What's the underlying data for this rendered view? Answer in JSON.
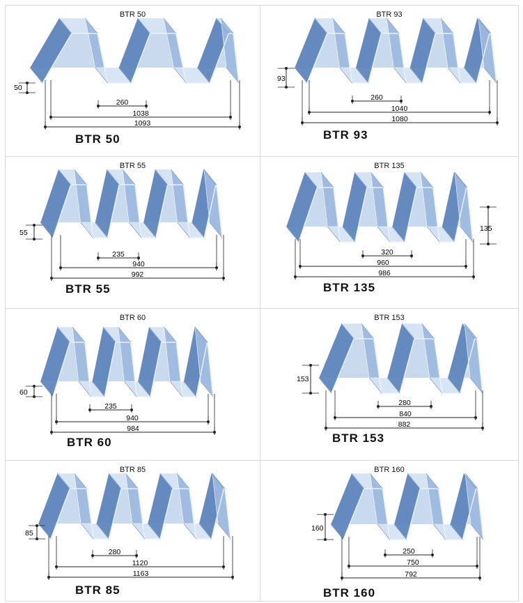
{
  "profiles": [
    {
      "caption": "BTR 50",
      "label": "BTR 50",
      "height": "50",
      "pitch": "260",
      "cover": "1038",
      "overall": "1093"
    },
    {
      "caption": "BTR 93",
      "label": "BTR 93",
      "height": "93",
      "pitch": "260",
      "cover": "1040",
      "overall": "1080"
    },
    {
      "caption": "BTR 55",
      "label": "BTR 55",
      "height": "55",
      "pitch": "235",
      "cover": "940",
      "overall": "992"
    },
    {
      "caption": "BTR 135",
      "label": "BTR 135",
      "height": "135",
      "pitch": "320",
      "cover": "960",
      "overall": "986"
    },
    {
      "caption": "BTR 60",
      "label": "BTR 60",
      "height": "60",
      "pitch": "235",
      "cover": "940",
      "overall": "984"
    },
    {
      "caption": "BTR 153",
      "label": "BTR 153",
      "height": "153",
      "pitch": "280",
      "cover": "840",
      "overall": "882"
    },
    {
      "caption": "BTR 85",
      "label": "BTR 85",
      "height": "85",
      "pitch": "280",
      "cover": "1120",
      "overall": "1163"
    },
    {
      "caption": "BTR 160",
      "label": "BTR 160",
      "height": "160",
      "pitch": "250",
      "cover": "750",
      "overall": "792"
    }
  ],
  "colors": {
    "steel_light": "#d6e4f4",
    "steel_mid": "#9db9e0",
    "steel_dark": "#5f86bd",
    "steel_deep": "#2f5f8f",
    "line": "#222222"
  }
}
